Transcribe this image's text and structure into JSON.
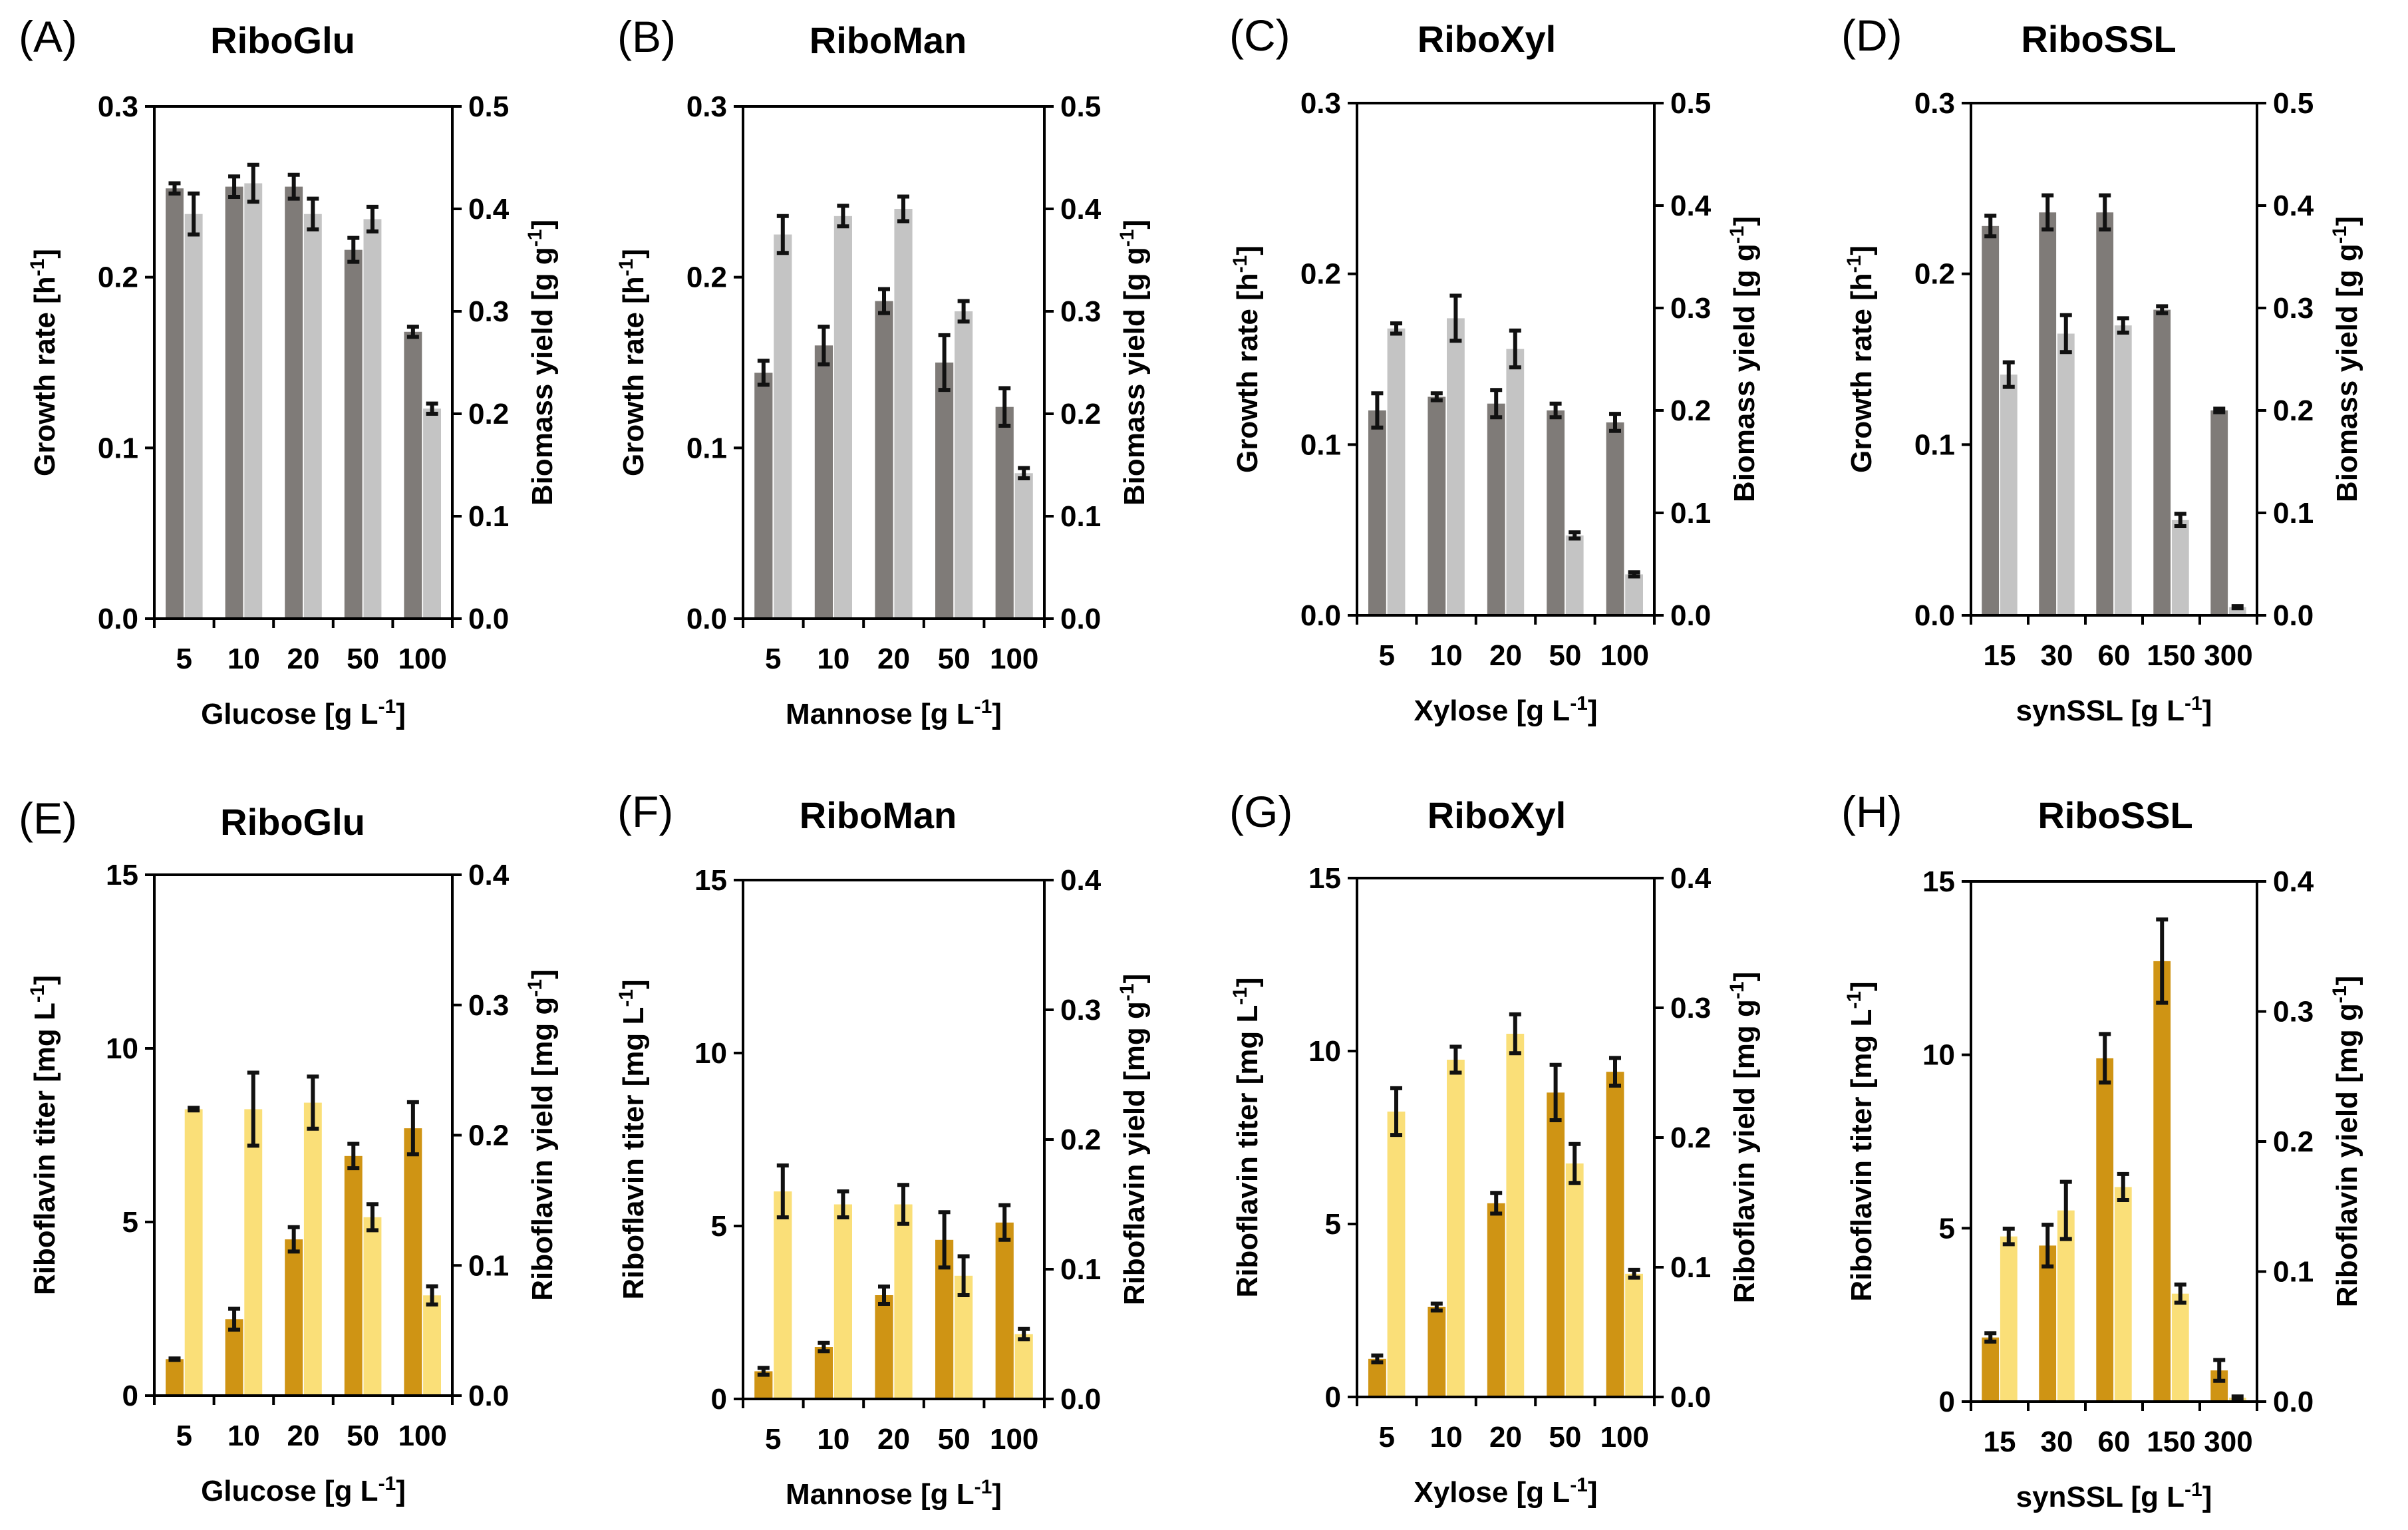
{
  "colors": {
    "growth_rate": "#7f7b78",
    "biomass_yield": "#c4c4c4",
    "riboflavin_titer": "#cf9414",
    "riboflavin_yield": "#fadf78",
    "axis": "#000000",
    "error_bar": "#111111"
  },
  "chart_data": [
    {
      "id": "A",
      "letter": "(A)",
      "title": "RiboGlu",
      "type": "bar",
      "categories": [
        "5",
        "10",
        "20",
        "50",
        "100"
      ],
      "xlabel_main": "Glucose [g L",
      "xlabel_sup": "-1",
      "xlabel_end": "]",
      "ylabel_left_main": "Growth rate [h",
      "ylabel_left_sup": "-1",
      "ylabel_left_end": "]",
      "ylabel_right_main": "Biomass yield [g g",
      "ylabel_right_sup": "-1",
      "ylabel_right_end": "]",
      "ylim_left": [
        0,
        0.3
      ],
      "ylim_right": [
        0,
        0.5
      ],
      "yticks_left": [
        "0.0",
        "0.1",
        "0.2",
        "0.3"
      ],
      "yticks_right": [
        "0.0",
        "0.1",
        "0.2",
        "0.3",
        "0.4",
        "0.5"
      ],
      "series": [
        {
          "name": "Growth rate",
          "axis": "left",
          "color_key": "growth_rate",
          "values": [
            0.252,
            0.253,
            0.253,
            0.216,
            0.168
          ],
          "errors": [
            0.003,
            0.006,
            0.007,
            0.007,
            0.003
          ]
        },
        {
          "name": "Biomass yield",
          "axis": "right",
          "color_key": "biomass_yield",
          "values": [
            0.395,
            0.425,
            0.395,
            0.39,
            0.205
          ],
          "errors": [
            0.02,
            0.018,
            0.015,
            0.012,
            0.005
          ]
        }
      ]
    },
    {
      "id": "B",
      "letter": "(B)",
      "title": "RiboMan",
      "type": "bar",
      "categories": [
        "5",
        "10",
        "20",
        "50",
        "100"
      ],
      "xlabel_main": "Mannose [g L",
      "xlabel_sup": "-1",
      "xlabel_end": "]",
      "ylabel_left_main": "Growth rate [h",
      "ylabel_left_sup": "-1",
      "ylabel_left_end": "]",
      "ylabel_right_main": "Biomass yield [g g",
      "ylabel_right_sup": "-1",
      "ylabel_right_end": "]",
      "ylim_left": [
        0,
        0.3
      ],
      "ylim_right": [
        0,
        0.5
      ],
      "yticks_left": [
        "0.0",
        "0.1",
        "0.2",
        "0.3"
      ],
      "yticks_right": [
        "0.0",
        "0.1",
        "0.2",
        "0.3",
        "0.4",
        "0.5"
      ],
      "series": [
        {
          "name": "Growth rate",
          "axis": "left",
          "color_key": "growth_rate",
          "values": [
            0.144,
            0.16,
            0.186,
            0.15,
            0.124
          ],
          "errors": [
            0.007,
            0.011,
            0.007,
            0.016,
            0.011
          ]
        },
        {
          "name": "Biomass yield",
          "axis": "right",
          "color_key": "biomass_yield",
          "values": [
            0.375,
            0.393,
            0.4,
            0.3,
            0.142
          ],
          "errors": [
            0.018,
            0.01,
            0.012,
            0.01,
            0.005
          ]
        }
      ]
    },
    {
      "id": "C",
      "letter": "(C)",
      "title": "RiboXyl",
      "type": "bar",
      "categories": [
        "5",
        "10",
        "20",
        "50",
        "100"
      ],
      "xlabel_main": "Xylose [g L",
      "xlabel_sup": "-1",
      "xlabel_end": "]",
      "ylabel_left_main": "Growth rate [h",
      "ylabel_left_sup": "-1",
      "ylabel_left_end": "]",
      "ylabel_right_main": "Biomass yield [g g",
      "ylabel_right_sup": "-1",
      "ylabel_right_end": "]",
      "ylim_left": [
        0,
        0.3
      ],
      "ylim_right": [
        0,
        0.5
      ],
      "yticks_left": [
        "0.0",
        "0.1",
        "0.2",
        "0.3"
      ],
      "yticks_right": [
        "0.0",
        "0.1",
        "0.2",
        "0.3",
        "0.4",
        "0.5"
      ],
      "series": [
        {
          "name": "Growth rate",
          "axis": "left",
          "color_key": "growth_rate",
          "values": [
            0.12,
            0.128,
            0.124,
            0.12,
            0.113
          ],
          "errors": [
            0.01,
            0.002,
            0.008,
            0.004,
            0.005
          ]
        },
        {
          "name": "Biomass yield",
          "axis": "right",
          "color_key": "biomass_yield",
          "values": [
            0.28,
            0.29,
            0.26,
            0.078,
            0.04
          ],
          "errors": [
            0.005,
            0.022,
            0.018,
            0.003,
            0.002
          ]
        }
      ]
    },
    {
      "id": "D",
      "letter": "(D)",
      "title": "RiboSSL",
      "type": "bar",
      "categories": [
        "15",
        "30",
        "60",
        "150",
        "300"
      ],
      "xlabel_main": "synSSL [g L",
      "xlabel_sup": "-1",
      "xlabel_end": "]",
      "ylabel_left_main": "Growth rate [h",
      "ylabel_left_sup": "-1",
      "ylabel_left_end": "]",
      "ylabel_right_main": "Biomass yield [g g",
      "ylabel_right_sup": "-1",
      "ylabel_right_end": "]",
      "ylim_left": [
        0,
        0.3
      ],
      "ylim_right": [
        0,
        0.5
      ],
      "yticks_left": [
        "0.0",
        "0.1",
        "0.2",
        "0.3"
      ],
      "yticks_right": [
        "0.0",
        "0.1",
        "0.2",
        "0.3",
        "0.4",
        "0.5"
      ],
      "series": [
        {
          "name": "Growth rate",
          "axis": "left",
          "color_key": "growth_rate",
          "values": [
            0.228,
            0.236,
            0.236,
            0.179,
            0.12
          ],
          "errors": [
            0.006,
            0.01,
            0.01,
            0.002,
            0.001
          ]
        },
        {
          "name": "Biomass yield",
          "axis": "right",
          "color_key": "biomass_yield",
          "values": [
            0.235,
            0.275,
            0.283,
            0.093,
            0.008
          ],
          "errors": [
            0.012,
            0.018,
            0.007,
            0.006,
            0.001
          ]
        }
      ]
    },
    {
      "id": "E",
      "letter": "(E)",
      "title": "RiboGlu",
      "type": "bar",
      "categories": [
        "5",
        "10",
        "20",
        "50",
        "100"
      ],
      "xlabel_main": "Glucose [g L",
      "xlabel_sup": "-1",
      "xlabel_end": "]",
      "ylabel_left_main": "Riboflavin titer [mg L",
      "ylabel_left_sup": "-1",
      "ylabel_left_end": "]",
      "ylabel_right_main": "Riboflavin yield [mg g",
      "ylabel_right_sup": "-1",
      "ylabel_right_end": "]",
      "ylim_left": [
        0,
        15
      ],
      "ylim_right": [
        0,
        0.4
      ],
      "yticks_left": [
        "0",
        "5",
        "10",
        "15"
      ],
      "yticks_right": [
        "0.0",
        "0.1",
        "0.2",
        "0.3",
        "0.4"
      ],
      "series": [
        {
          "name": "Riboflavin titer",
          "axis": "left",
          "color_key": "riboflavin_titer",
          "values": [
            1.05,
            2.2,
            4.5,
            6.9,
            7.7
          ],
          "errors": [
            0.02,
            0.3,
            0.35,
            0.35,
            0.75
          ]
        },
        {
          "name": "Riboflavin yield",
          "axis": "right",
          "color_key": "riboflavin_yield",
          "values": [
            0.22,
            0.22,
            0.225,
            0.137,
            0.077
          ],
          "errors": [
            0.001,
            0.028,
            0.02,
            0.01,
            0.007
          ]
        }
      ]
    },
    {
      "id": "F",
      "letter": "(F)",
      "title": "RiboMan",
      "type": "bar",
      "categories": [
        "5",
        "10",
        "20",
        "50",
        "100"
      ],
      "xlabel_main": "Mannose [g L",
      "xlabel_sup": "-1",
      "xlabel_end": "]",
      "ylabel_left_main": "Riboflavin titer [mg L",
      "ylabel_left_sup": "-1",
      "ylabel_left_end": "]",
      "ylabel_right_main": "Riboflavin yield [mg g",
      "ylabel_right_sup": "-1",
      "ylabel_right_end": "]",
      "ylim_left": [
        0,
        15
      ],
      "ylim_right": [
        0,
        0.4
      ],
      "yticks_left": [
        "0",
        "5",
        "10",
        "15"
      ],
      "yticks_right": [
        "0.0",
        "0.1",
        "0.2",
        "0.3",
        "0.4"
      ],
      "series": [
        {
          "name": "Riboflavin titer",
          "axis": "left",
          "color_key": "riboflavin_titer",
          "values": [
            0.8,
            1.5,
            3.0,
            4.6,
            5.1
          ],
          "errors": [
            0.1,
            0.12,
            0.25,
            0.8,
            0.5
          ]
        },
        {
          "name": "Riboflavin yield",
          "axis": "right",
          "color_key": "riboflavin_yield",
          "values": [
            0.16,
            0.15,
            0.15,
            0.095,
            0.05
          ],
          "errors": [
            0.02,
            0.01,
            0.015,
            0.015,
            0.004
          ]
        }
      ]
    },
    {
      "id": "G",
      "letter": "(G)",
      "title": "RiboXyl",
      "type": "bar",
      "categories": [
        "5",
        "10",
        "20",
        "50",
        "100"
      ],
      "xlabel_main": "Xylose [g L",
      "xlabel_sup": "-1",
      "xlabel_end": "]",
      "ylabel_left_main": "Riboflavin titer [mg L",
      "ylabel_left_sup": "-1",
      "ylabel_left_end": "]",
      "ylabel_right_main": "Riboflavin yield [mg g",
      "ylabel_right_sup": "-1",
      "ylabel_right_end": "]",
      "ylim_left": [
        0,
        15
      ],
      "ylim_right": [
        0,
        0.4
      ],
      "yticks_left": [
        "0",
        "5",
        "10",
        "15"
      ],
      "yticks_right": [
        "0.0",
        "0.1",
        "0.2",
        "0.3",
        "0.4"
      ],
      "series": [
        {
          "name": "Riboflavin titer",
          "axis": "left",
          "color_key": "riboflavin_titer",
          "values": [
            1.1,
            2.6,
            5.6,
            8.8,
            9.4
          ],
          "errors": [
            0.1,
            0.1,
            0.3,
            0.8,
            0.4
          ]
        },
        {
          "name": "Riboflavin yield",
          "axis": "right",
          "color_key": "riboflavin_yield",
          "values": [
            0.22,
            0.26,
            0.28,
            0.18,
            0.095
          ],
          "errors": [
            0.018,
            0.01,
            0.015,
            0.015,
            0.003
          ]
        }
      ]
    },
    {
      "id": "H",
      "letter": "(H)",
      "title": "RiboSSL",
      "type": "bar",
      "categories": [
        "15",
        "30",
        "60",
        "150",
        "300"
      ],
      "xlabel_main": "synSSL [g L",
      "xlabel_sup": "-1",
      "xlabel_end": "]",
      "ylabel_left_main": "Riboflavin titer [mg L",
      "ylabel_left_sup": "-1",
      "ylabel_left_end": "]",
      "ylabel_right_main": "Riboflavin yield [mg g",
      "ylabel_right_sup": "-1",
      "ylabel_right_end": "]",
      "ylim_left": [
        0,
        15
      ],
      "ylim_right": [
        0,
        0.4
      ],
      "yticks_left": [
        "0",
        "5",
        "10",
        "15"
      ],
      "yticks_right": [
        "0.0",
        "0.1",
        "0.2",
        "0.3",
        "0.4"
      ],
      "series": [
        {
          "name": "Riboflavin titer",
          "axis": "left",
          "color_key": "riboflavin_titer",
          "values": [
            1.85,
            4.5,
            9.9,
            12.7,
            0.9
          ],
          "errors": [
            0.12,
            0.6,
            0.7,
            1.2,
            0.3
          ]
        },
        {
          "name": "Riboflavin yield",
          "axis": "right",
          "color_key": "riboflavin_yield",
          "values": [
            0.127,
            0.147,
            0.165,
            0.083,
            0.003
          ],
          "errors": [
            0.006,
            0.022,
            0.01,
            0.007,
            0.001
          ]
        }
      ]
    }
  ]
}
